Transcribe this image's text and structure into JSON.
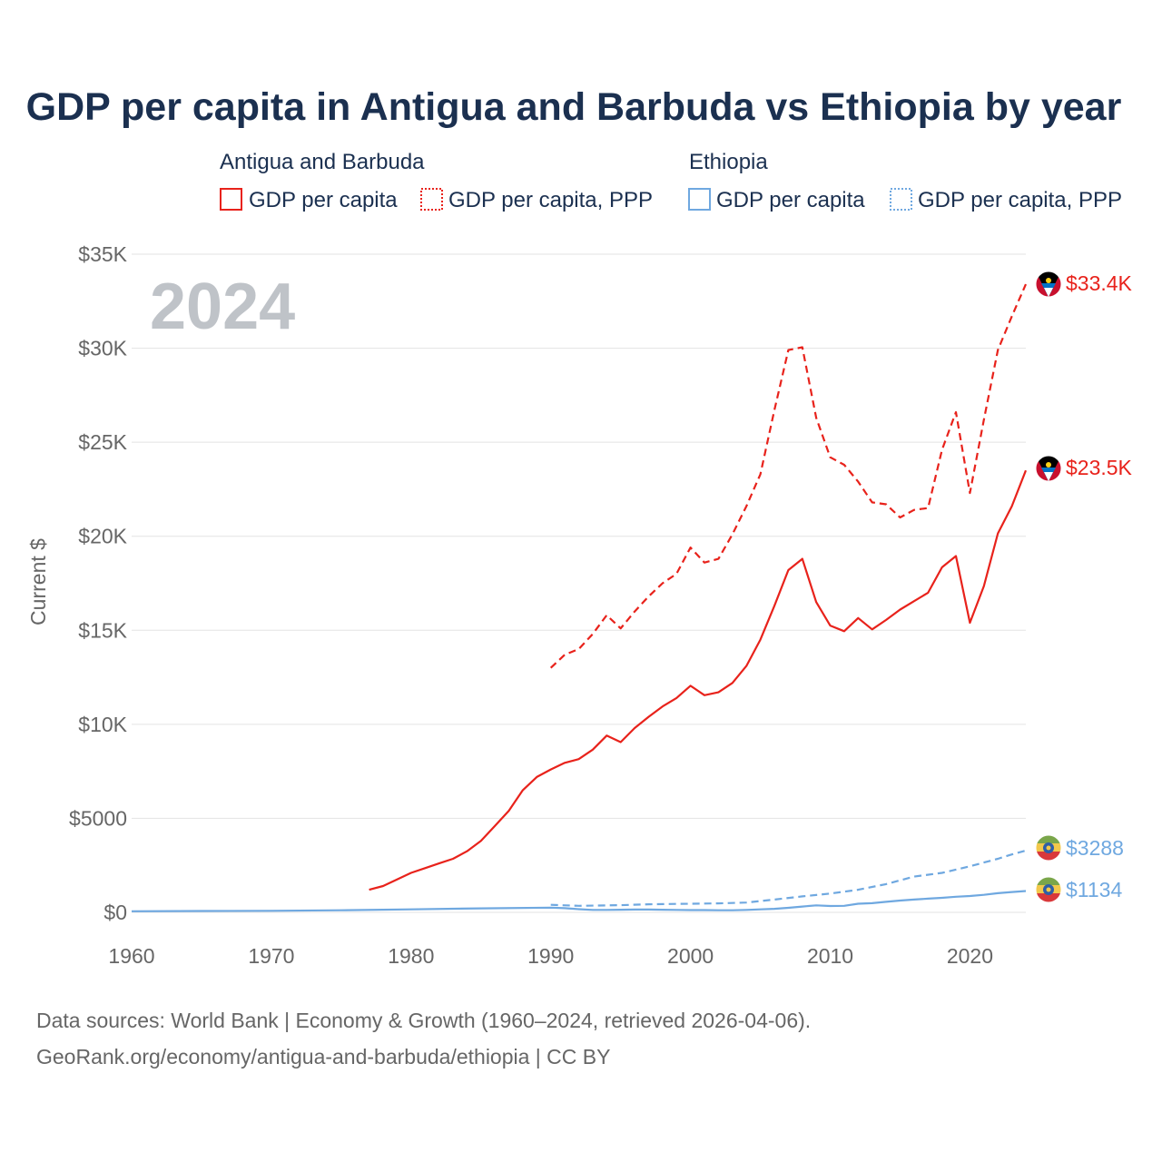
{
  "page": {
    "title": "GDP per capita in Antigua and Barbuda vs Ethiopia by year",
    "year_label": "2024",
    "source_line1": "Data sources: World Bank | Economy & Growth (1960–2024, retrieved 2026-04-06).",
    "source_line2": "GeoRank.org/economy/antigua-and-barbuda/ethiopia | CC BY"
  },
  "legend": {
    "groups": [
      {
        "name": "Antigua and Barbuda",
        "color": "#e8221b",
        "items": [
          {
            "label": "GDP per capita",
            "style": "solid"
          },
          {
            "label": "GDP per capita, PPP",
            "style": "dotted"
          }
        ]
      },
      {
        "name": "Ethiopia",
        "color": "#6fa8e0",
        "items": [
          {
            "label": "GDP per capita",
            "style": "solid"
          },
          {
            "label": "GDP per capita, PPP",
            "style": "dotted"
          }
        ]
      }
    ]
  },
  "colors": {
    "antigua": "#e8221b",
    "ethiopia": "#6fa8e0",
    "title": "#1b3050",
    "axis_text": "#666666"
  },
  "chart_data": {
    "type": "line",
    "title": "GDP per capita in Antigua and Barbuda vs Ethiopia by year",
    "xlabel": "",
    "ylabel": "Current $",
    "xlim": [
      1960,
      2024
    ],
    "ylim": [
      0,
      35000
    ],
    "grid": true,
    "x_ticks": [
      1960,
      1970,
      1980,
      1990,
      2000,
      2010,
      2020
    ],
    "x_tick_labels": [
      "1960",
      "1970",
      "1980",
      "1990",
      "2000",
      "2010",
      "2020"
    ],
    "y_ticks": [
      0,
      5000,
      10000,
      15000,
      20000,
      25000,
      30000,
      35000
    ],
    "y_tick_labels": [
      "$0",
      "$5000",
      "$10K",
      "$15K",
      "$20K",
      "$25K",
      "$30K",
      "$35K"
    ],
    "series": [
      {
        "name": "Antigua and Barbuda – GDP per capita",
        "country": "antigua",
        "dash": "solid",
        "end_label": "$23.5K",
        "x": [
          1977,
          1978,
          1979,
          1980,
          1981,
          1982,
          1983,
          1984,
          1985,
          1986,
          1987,
          1988,
          1989,
          1990,
          1991,
          1992,
          1993,
          1994,
          1995,
          1996,
          1997,
          1998,
          1999,
          2000,
          2001,
          2002,
          2003,
          2004,
          2005,
          2006,
          2007,
          2008,
          2009,
          2010,
          2011,
          2012,
          2013,
          2014,
          2015,
          2016,
          2017,
          2018,
          2019,
          2020,
          2021,
          2022,
          2023,
          2024
        ],
        "values": [
          1200,
          1400,
          1750,
          2100,
          2350,
          2600,
          2850,
          3250,
          3800,
          4600,
          5400,
          6500,
          7200,
          7600,
          7950,
          8150,
          8650,
          9400,
          9050,
          9800,
          10400,
          10950,
          11400,
          12050,
          11550,
          11700,
          12200,
          13100,
          14500,
          16300,
          18200,
          18800,
          16500,
          15250,
          14950,
          15650,
          15050,
          15550,
          16100,
          16550,
          17000,
          18350,
          18950,
          15400,
          17350,
          20150,
          21600,
          23500
        ]
      },
      {
        "name": "Antigua and Barbuda – GDP per capita, PPP",
        "country": "antigua",
        "dash": "dashed",
        "end_label": "$33.4K",
        "x": [
          1990,
          1991,
          1992,
          1993,
          1994,
          1995,
          1996,
          1997,
          1998,
          1999,
          2000,
          2001,
          2002,
          2003,
          2004,
          2005,
          2006,
          2007,
          2008,
          2009,
          2010,
          2011,
          2012,
          2013,
          2014,
          2015,
          2016,
          2017,
          2018,
          2019,
          2020,
          2021,
          2022,
          2023,
          2024
        ],
        "values": [
          13000,
          13700,
          14000,
          14800,
          15800,
          15100,
          16000,
          16800,
          17500,
          18000,
          19400,
          18600,
          18800,
          20100,
          21600,
          23300,
          26700,
          29900,
          30050,
          26300,
          24200,
          23800,
          22900,
          21800,
          21700,
          21000,
          21400,
          21500,
          24600,
          26600,
          22300,
          26200,
          29900,
          31700,
          33400
        ]
      },
      {
        "name": "Ethiopia – GDP per capita",
        "country": "ethiopia",
        "dash": "solid",
        "end_label": "$1134",
        "x": [
          1960,
          1965,
          1970,
          1975,
          1980,
          1985,
          1990,
          1991,
          1992,
          1993,
          1994,
          1995,
          1996,
          1997,
          1998,
          1999,
          2000,
          2001,
          2002,
          2003,
          2004,
          2005,
          2006,
          2007,
          2008,
          2009,
          2010,
          2011,
          2012,
          2013,
          2014,
          2015,
          2016,
          2017,
          2018,
          2019,
          2020,
          2021,
          2022,
          2023,
          2024
        ],
        "values": [
          60,
          70,
          80,
          110,
          160,
          210,
          250,
          220,
          170,
          130,
          130,
          140,
          150,
          150,
          140,
          130,
          120,
          120,
          110,
          110,
          130,
          160,
          190,
          240,
          310,
          370,
          340,
          350,
          460,
          490,
          560,
          630,
          680,
          730,
          770,
          830,
          870,
          930,
          1020,
          1080,
          1134
        ]
      },
      {
        "name": "Ethiopia – GDP per capita, PPP",
        "country": "ethiopia",
        "dash": "dashed",
        "end_label": "$3288",
        "x": [
          1990,
          1992,
          1995,
          1997,
          2000,
          2002,
          2004,
          2006,
          2008,
          2010,
          2012,
          2014,
          2016,
          2018,
          2020,
          2021,
          2022,
          2023,
          2024
        ],
        "values": [
          400,
          350,
          380,
          430,
          460,
          480,
          520,
          680,
          850,
          1000,
          1200,
          1500,
          1900,
          2100,
          2450,
          2650,
          2850,
          3080,
          3288
        ]
      }
    ]
  }
}
